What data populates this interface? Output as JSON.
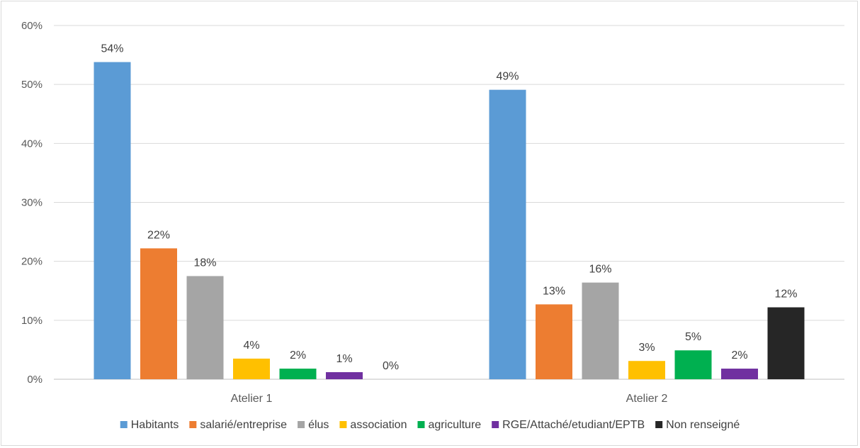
{
  "chart_data": {
    "type": "bar",
    "title": "",
    "xlabel": "",
    "ylabel": "",
    "ylim": [
      0,
      60
    ],
    "yticks": [
      "0%",
      "10%",
      "20%",
      "30%",
      "40%",
      "50%",
      "60%"
    ],
    "grid": true,
    "legend_position": "bottom",
    "categories": [
      "Atelier 1",
      "Atelier 2"
    ],
    "series": [
      {
        "name": "Habitants",
        "color": "#5B9BD5",
        "values": [
          53.8,
          49.1
        ],
        "labels": [
          "54%",
          "49%"
        ]
      },
      {
        "name": "salarié/entreprise",
        "color": "#ED7D31",
        "values": [
          22.2,
          12.7
        ],
        "labels": [
          "22%",
          "13%"
        ]
      },
      {
        "name": "élus",
        "color": "#A5A5A5",
        "values": [
          17.5,
          16.4
        ],
        "labels": [
          "18%",
          "16%"
        ]
      },
      {
        "name": "association",
        "color": "#FFC000",
        "values": [
          3.5,
          3.1
        ],
        "labels": [
          "4%",
          "3%"
        ]
      },
      {
        "name": "agriculture",
        "color": "#00B050",
        "values": [
          1.8,
          4.9
        ],
        "labels": [
          "2%",
          "5%"
        ]
      },
      {
        "name": "RGE/Attaché/etudiant/EPTB",
        "color": "#7030A0",
        "values": [
          1.2,
          1.8
        ],
        "labels": [
          "1%",
          "2%"
        ]
      },
      {
        "name": "Non renseigné",
        "color": "#262626",
        "values": [
          0,
          12.2
        ],
        "labels": [
          "0%",
          "12%"
        ]
      }
    ]
  }
}
